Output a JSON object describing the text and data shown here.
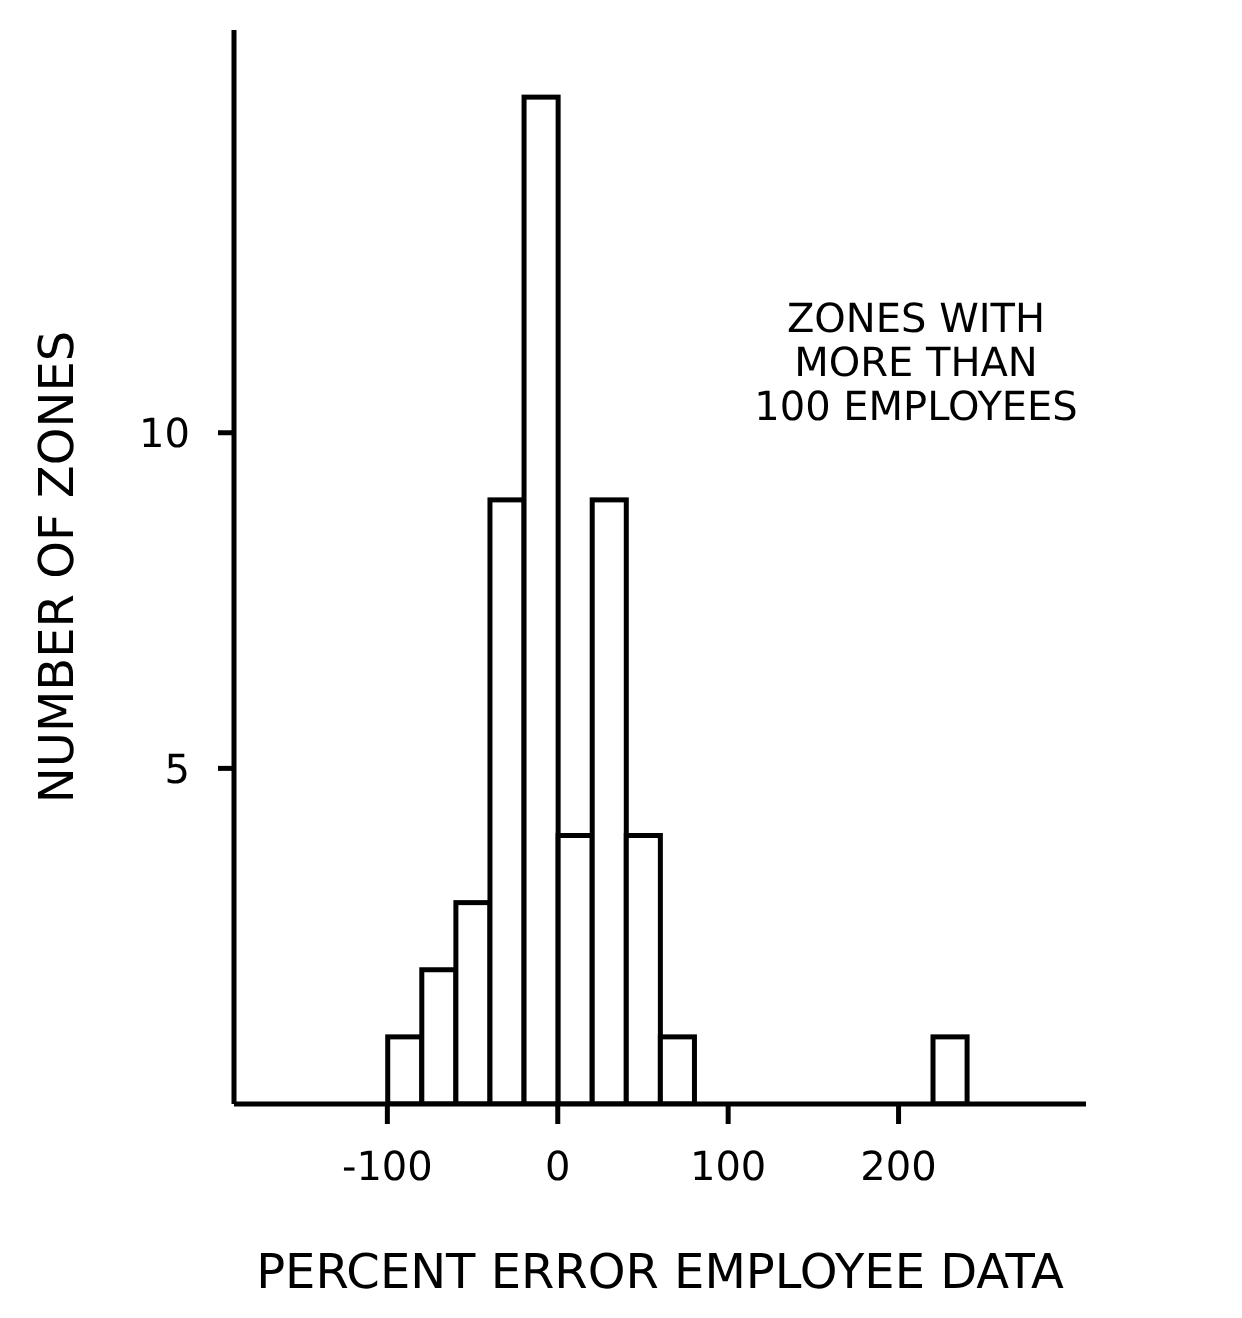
{
  "chart_data": {
    "type": "histogram",
    "xlabel": "PERCENT ERROR EMPLOYEE DATA",
    "ylabel": "NUMBER OF ZONES",
    "bins": [
      -100,
      -80,
      -60,
      -40,
      -20,
      0,
      20,
      40,
      60,
      80,
      100,
      120,
      140,
      160,
      180,
      200,
      220,
      240
    ],
    "values": [
      1,
      2,
      3,
      9,
      15,
      4,
      9,
      4,
      1,
      0,
      0,
      0,
      0,
      0,
      0,
      0,
      1
    ],
    "color": "#ffffff",
    "xlim": [
      -190,
      310
    ],
    "xticks": [
      -100,
      0,
      100,
      200
    ],
    "ylim": [
      0,
      16
    ],
    "yticks": [
      5,
      10
    ],
    "annotations": [
      "ZONES WITH\nMORE THAN\n100 EMPLOYEES"
    ]
  }
}
